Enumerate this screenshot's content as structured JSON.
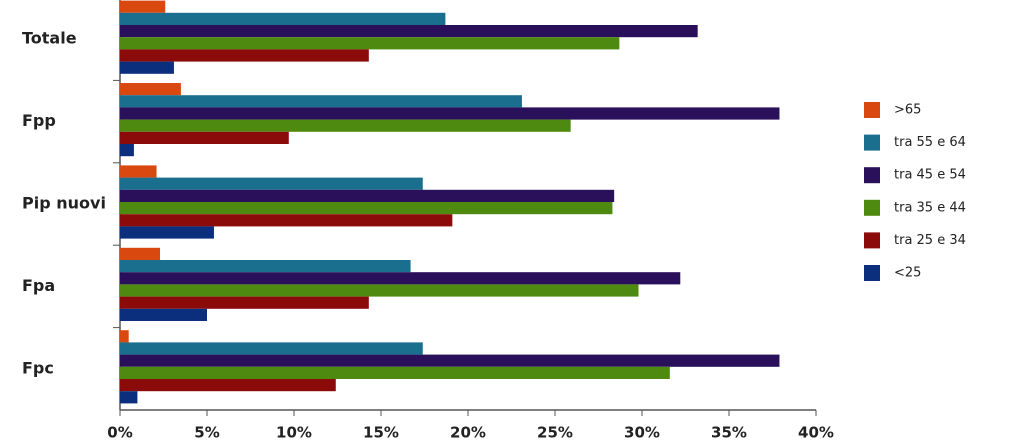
{
  "chart_data": {
    "type": "hbar",
    "categories": [
      "Totale",
      "Fpp",
      "Pip nuovi",
      "Fpa",
      "Fpc"
    ],
    "series": [
      {
        "name": ">65",
        "color": "#d9480f",
        "values": [
          2.6,
          3.5,
          2.1,
          2.3,
          0.5
        ]
      },
      {
        "name": "tra 55 e 64",
        "color": "#1a6f8e",
        "values": [
          18.7,
          23.1,
          17.4,
          16.7,
          17.4
        ]
      },
      {
        "name": "tra 45 e 54",
        "color": "#2a0f5a",
        "values": [
          33.2,
          37.9,
          28.4,
          32.2,
          37.9
        ]
      },
      {
        "name": "tra 35 e 44",
        "color": "#4f8a10",
        "values": [
          28.7,
          25.9,
          28.3,
          29.8,
          31.6
        ]
      },
      {
        "name": "tra 25 e 34",
        "color": "#8b0a0a",
        "values": [
          14.3,
          9.7,
          19.1,
          14.3,
          12.4
        ]
      },
      {
        "name": "<25",
        "color": "#0b2f7d",
        "values": [
          3.1,
          0.8,
          5.4,
          5.0,
          1.0
        ]
      }
    ],
    "xlim": [
      0,
      40
    ],
    "xticks": [
      {
        "value": 0,
        "label": "0%"
      },
      {
        "value": 5,
        "label": "5%"
      },
      {
        "value": 10,
        "label": "10%"
      },
      {
        "value": 15,
        "label": "15%"
      },
      {
        "value": 20,
        "label": "20%"
      },
      {
        "value": 25,
        "label": "25%"
      },
      {
        "value": 30,
        "label": "30%"
      },
      {
        "value": 35,
        "label": "35%"
      },
      {
        "value": 40,
        "label": "40%"
      }
    ],
    "grid": false,
    "legend": "right"
  }
}
